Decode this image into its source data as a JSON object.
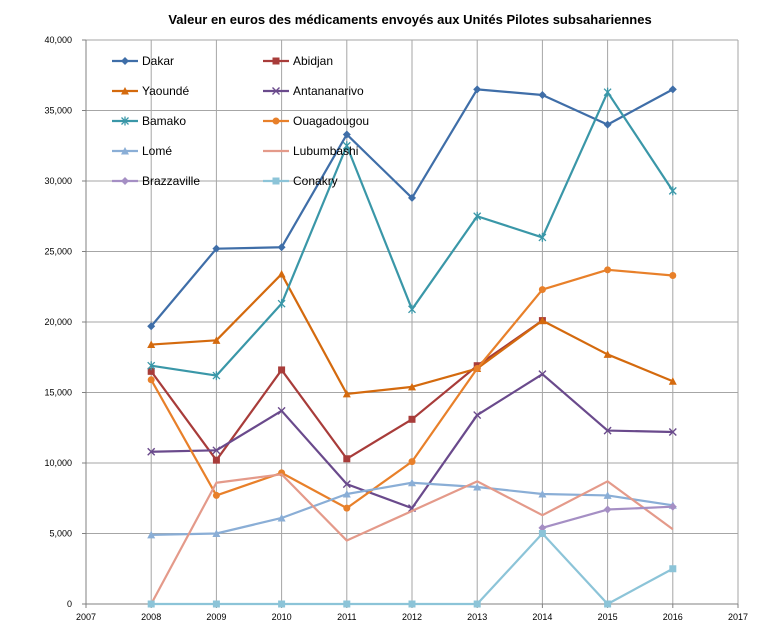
{
  "chart_data": {
    "type": "line",
    "title": "Valeur en euros des médicaments envoyés aux Unités Pilotes subsahariennes",
    "xlabel": "",
    "ylabel": "",
    "xlim": [
      2007,
      2017
    ],
    "ylim": [
      0,
      40000
    ],
    "x_ticks": [
      "2007",
      "2008",
      "2009",
      "2010",
      "2011",
      "2012",
      "2013",
      "2014",
      "2015",
      "2016",
      "2017"
    ],
    "y_ticks": [
      "0",
      "5,000",
      "10,000",
      "15,000",
      "20,000",
      "25,000",
      "30,000",
      "35,000",
      "40,000"
    ],
    "grid": true,
    "legend_position": "top-left",
    "x": [
      2008,
      2009,
      2010,
      2011,
      2012,
      2013,
      2014,
      2015,
      2016
    ],
    "series": [
      {
        "name": "Dakar",
        "color": "#3f6ea8",
        "marker": "diamond",
        "values": [
          19700,
          25200,
          25300,
          33300,
          28800,
          36500,
          36100,
          34000,
          36500
        ]
      },
      {
        "name": "Abidjan",
        "color": "#a83c3a",
        "marker": "square",
        "values": [
          16500,
          10200,
          16600,
          10300,
          13100,
          16900,
          20100,
          null,
          null
        ]
      },
      {
        "name": "Yaoundé",
        "color": "#d46a0e",
        "marker": "triangle",
        "values": [
          18400,
          18700,
          23400,
          14900,
          15400,
          16700,
          20100,
          17700,
          15800
        ]
      },
      {
        "name": "Antananarivo",
        "color": "#6a4a8c",
        "marker": "x",
        "values": [
          10800,
          10900,
          13700,
          8500,
          6800,
          13400,
          16300,
          12300,
          12200
        ]
      },
      {
        "name": "Bamako",
        "color": "#3a97a8",
        "marker": "star",
        "values": [
          16900,
          16200,
          21300,
          32500,
          20900,
          27500,
          26000,
          36300,
          29300
        ]
      },
      {
        "name": "Ouagadougou",
        "color": "#e8802a",
        "marker": "circle",
        "values": [
          15900,
          7700,
          9300,
          6800,
          10100,
          16700,
          22300,
          23700,
          23300
        ]
      },
      {
        "name": "Lomé",
        "color": "#8aaed6",
        "marker": "triangle",
        "values": [
          4900,
          5000,
          6100,
          7800,
          8600,
          8300,
          7800,
          7700,
          7000
        ]
      },
      {
        "name": "Lubumbashi",
        "color": "#e49a8a",
        "marker": "none",
        "values": [
          0,
          8600,
          9200,
          4500,
          6600,
          8700,
          6300,
          8700,
          5300
        ]
      },
      {
        "name": "Brazzaville",
        "color": "#a58fc4",
        "marker": "diamond",
        "values": [
          null,
          null,
          null,
          null,
          null,
          null,
          5400,
          6700,
          6900
        ]
      },
      {
        "name": "Conakry",
        "color": "#8cc4d8",
        "marker": "square",
        "values": [
          0,
          0,
          0,
          0,
          0,
          0,
          5000,
          0,
          2500
        ]
      }
    ]
  }
}
